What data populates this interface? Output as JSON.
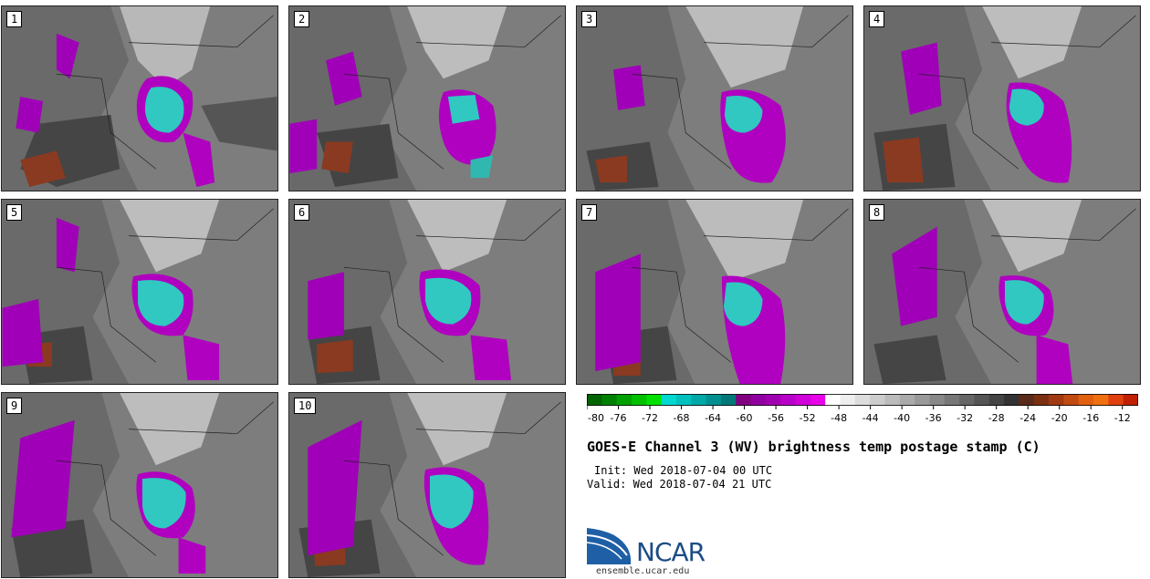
{
  "panels": [
    {
      "label": "1"
    },
    {
      "label": "2"
    },
    {
      "label": "3"
    },
    {
      "label": "4"
    },
    {
      "label": "5"
    },
    {
      "label": "6"
    },
    {
      "label": "7"
    },
    {
      "label": "8"
    },
    {
      "label": "9"
    },
    {
      "label": "10"
    }
  ],
  "colorbar": {
    "tick_labels": [
      "-80",
      "-76",
      "-72",
      "-68",
      "-64",
      "-60",
      "-56",
      "-52",
      "-48",
      "-44",
      "-40",
      "-36",
      "-32",
      "-28",
      "-24",
      "-20",
      "-16",
      "-12"
    ],
    "range": [
      -80,
      -10
    ],
    "colors": [
      "#006400",
      "#008000",
      "#00a000",
      "#00c000",
      "#00e000",
      "#00d8d0",
      "#00c0c0",
      "#00a8a8",
      "#009090",
      "#007878",
      "#800080",
      "#9000a0",
      "#a000b0",
      "#b800c8",
      "#d000d8",
      "#e800e8",
      "#ffffff",
      "#eeeeee",
      "#dddddd",
      "#cccccc",
      "#bbbbbb",
      "#aaaaaa",
      "#999999",
      "#888888",
      "#777777",
      "#666666",
      "#555555",
      "#444444",
      "#333333",
      "#5a2a1a",
      "#7a3010",
      "#a03a10",
      "#c04a10",
      "#e06010",
      "#f07010",
      "#e04010",
      "#c02000"
    ]
  },
  "title": "GOES-E Channel 3 (WV) brightness temp postage stamp (C)",
  "init": "Init: Wed 2018-07-04 00 UTC",
  "valid": "Valid: Wed 2018-07-04 21 UTC",
  "logo": {
    "name": "NCAR",
    "url": "ensemble.ucar.edu"
  }
}
